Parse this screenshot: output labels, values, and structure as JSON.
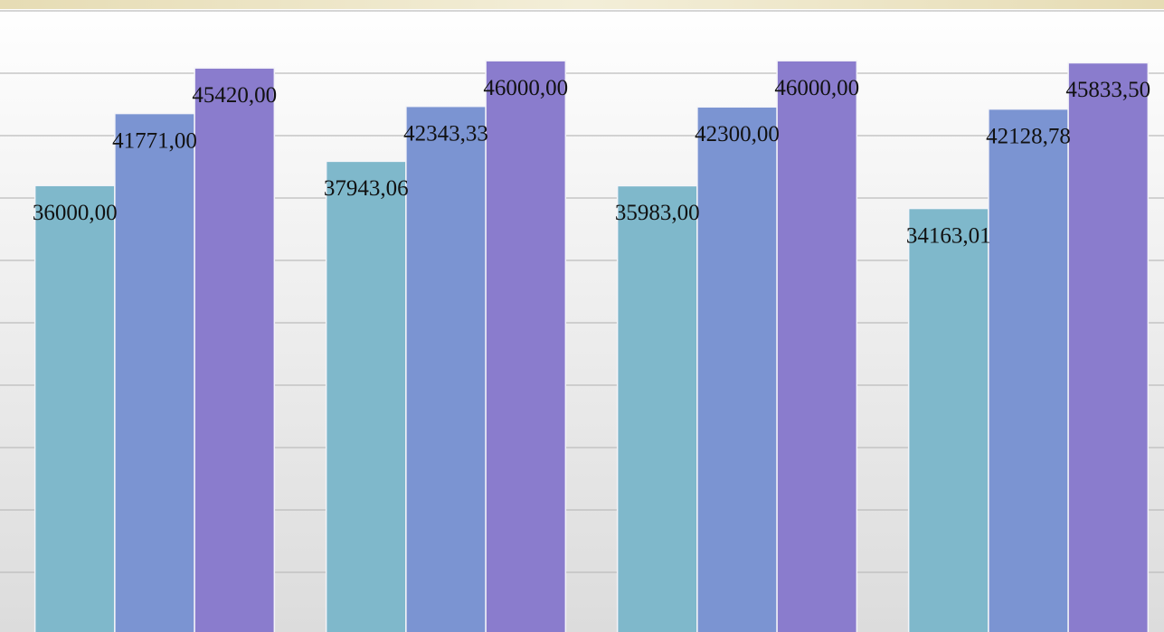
{
  "chart_data": {
    "type": "bar",
    "categories": [
      null,
      null,
      null,
      null
    ],
    "series": [
      {
        "color": "#7fb8cb",
        "values": [
          36000,
          37943.06,
          35983,
          34163.01
        ],
        "value_labels": [
          "36000,00",
          "37943,06",
          "35983,00",
          "34163,01"
        ]
      },
      {
        "color": "#7b94d2",
        "values": [
          41771,
          42343.33,
          42300,
          42128.78
        ],
        "value_labels": [
          "41771,00",
          "42343,33",
          "42300,00",
          "42128,78"
        ]
      },
      {
        "color": "#8a7ccd",
        "values": [
          45420,
          46000,
          46000,
          45833.5
        ],
        "value_labels": [
          "45420,00",
          "46000,00",
          "46000,00",
          "45833,50"
        ]
      }
    ],
    "ylim": [
      0,
      50000
    ],
    "yticks": [
      0,
      5000,
      10000,
      15000,
      20000,
      25000,
      30000,
      35000,
      40000,
      45000,
      50000
    ],
    "grid": true
  }
}
